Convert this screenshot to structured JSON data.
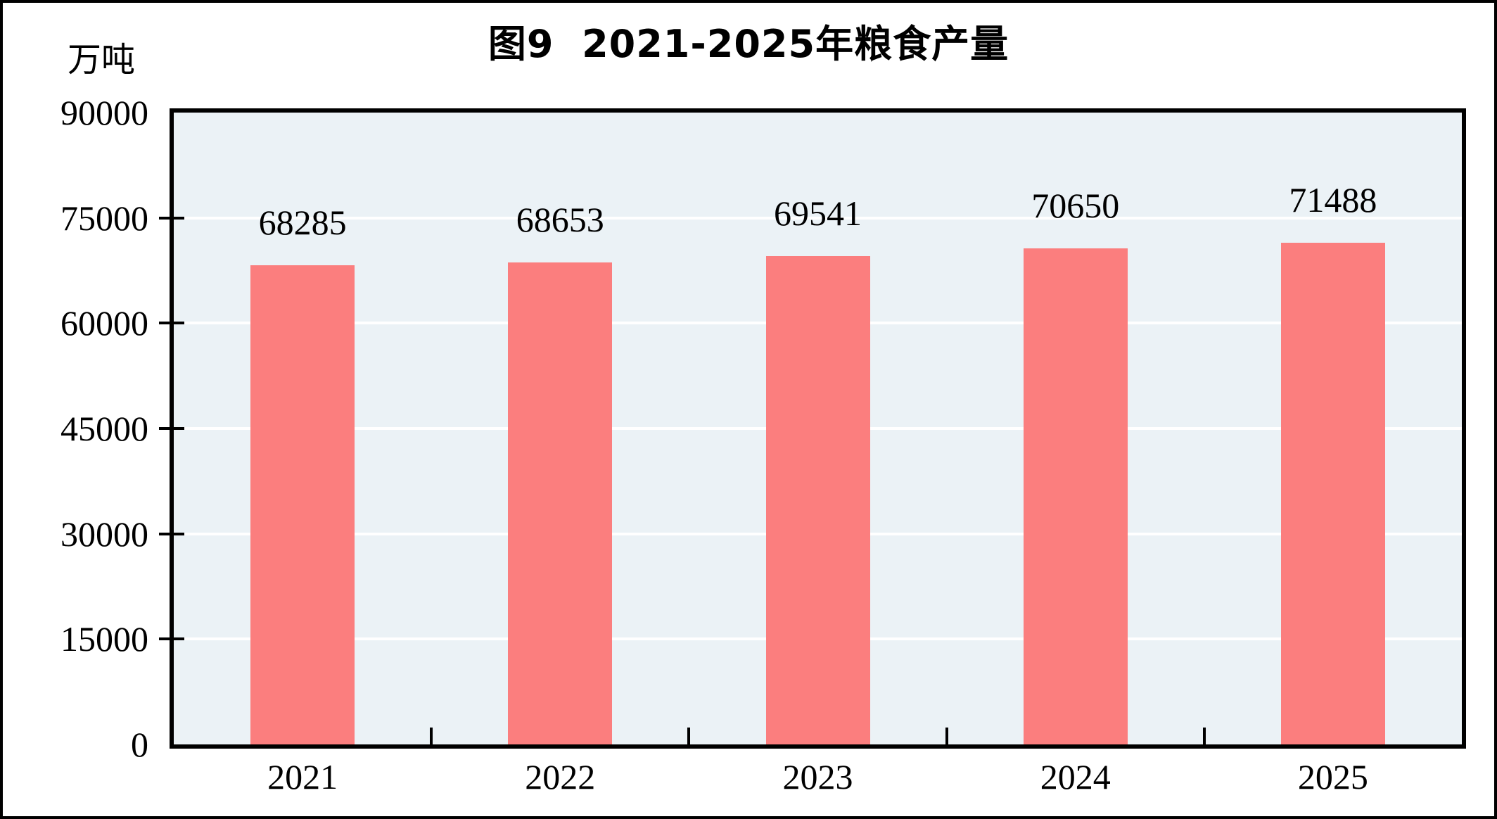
{
  "figure": {
    "title": "图9  2021-2025年粮食产量",
    "unit_label": "万吨"
  },
  "chart_data": {
    "type": "bar",
    "title": "图9  2021-2025年粮食产量",
    "categories": [
      "2021",
      "2022",
      "2023",
      "2024",
      "2025"
    ],
    "values": [
      68285,
      68653,
      69541,
      70650,
      71488
    ],
    "data_labels": [
      "68285",
      "68653",
      "69541",
      "70650",
      "71488"
    ],
    "xlabel": "",
    "ylabel": "万吨",
    "ylim": [
      0,
      90000
    ],
    "yticks": [
      0,
      15000,
      30000,
      45000,
      60000,
      75000,
      90000
    ],
    "grid": true,
    "legend_position": "none",
    "colors": {
      "bar_fill": "#FB7E7E",
      "plot_background": "#EBF2F6",
      "gridline": "#FFFFFF",
      "axis": "#000000",
      "text": "#000000"
    }
  }
}
